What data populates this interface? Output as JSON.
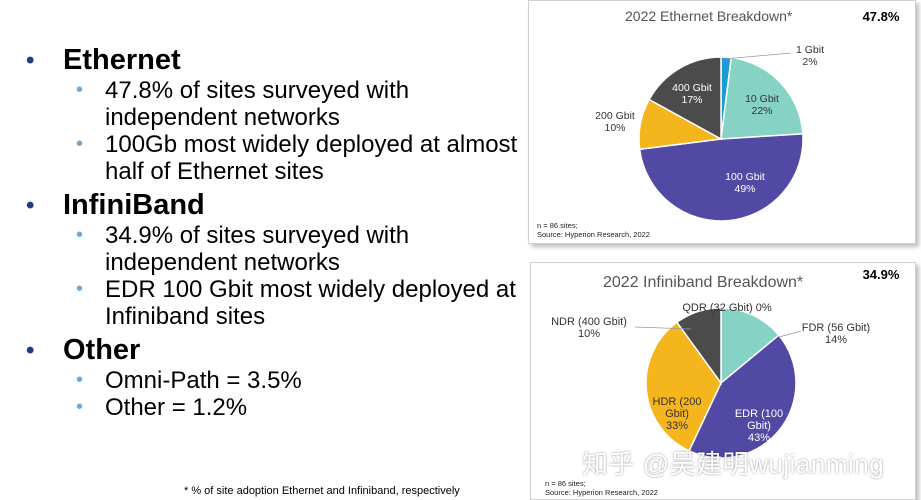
{
  "bullets": [
    {
      "title": "Ethernet",
      "items": [
        "47.8% of sites surveyed with independent networks",
        "100Gb most widely deployed at almost half of Ethernet sites"
      ]
    },
    {
      "title": "InfiniBand",
      "items": [
        "34.9% of sites surveyed with independent networks",
        "EDR 100 Gbit most widely deployed at Infiniband sites"
      ]
    },
    {
      "title": "Other",
      "items": [
        "Omni-Path = 3.5%",
        "Other = 1.2%"
      ]
    }
  ],
  "footnote": "* % of site adoption Ethernet and Infiniband, respectively",
  "panels": {
    "ethernet": {
      "share": "47.8%",
      "source": [
        "n = 86 sites;",
        "Source: Hyperion Research, 2022"
      ]
    },
    "infiniband": {
      "share": "34.9%",
      "source": [
        "n = 86 sites;",
        "Source: Hyperion Research, 2022"
      ]
    }
  },
  "watermark": "知乎 @吴建明wujianming",
  "chart_data": [
    {
      "type": "pie",
      "title": "2022 Ethernet Breakdown*",
      "series": [
        {
          "values": [
            {
              "label": "1 Gbit",
              "value": 2,
              "display": "2%",
              "color": "#1a9bd7"
            },
            {
              "label": "10 Gbit",
              "value": 22,
              "display": "22%",
              "color": "#86d3c5"
            },
            {
              "label": "100 Gbit",
              "value": 49,
              "display": "49%",
              "color": "#5149a3"
            },
            {
              "label": "200 Gbit",
              "value": 10,
              "display": "10%",
              "color": "#f5b51c"
            },
            {
              "label": "400 Gbit",
              "value": 17,
              "display": "17%",
              "color": "#4b4b4b"
            }
          ]
        }
      ]
    },
    {
      "type": "pie",
      "title": "2022 Infiniband Breakdown*",
      "series": [
        {
          "values": [
            {
              "label": "QDR (32 Gbit)",
              "value": 0,
              "display": "0%",
              "color": "#3a7fc4"
            },
            {
              "label": "FDR (56 Gbit)",
              "value": 14,
              "display": "14%",
              "color": "#86d3c5"
            },
            {
              "label": "EDR (100 Gbit)",
              "value": 43,
              "display": "43%",
              "color": "#5149a3"
            },
            {
              "label": "HDR (200 Gbit)",
              "value": 33,
              "display": "33%",
              "color": "#f5b51c"
            },
            {
              "label": "NDR (400 Gbit)",
              "value": 10,
              "display": "10%",
              "color": "#4b4b4b"
            }
          ]
        }
      ]
    }
  ]
}
